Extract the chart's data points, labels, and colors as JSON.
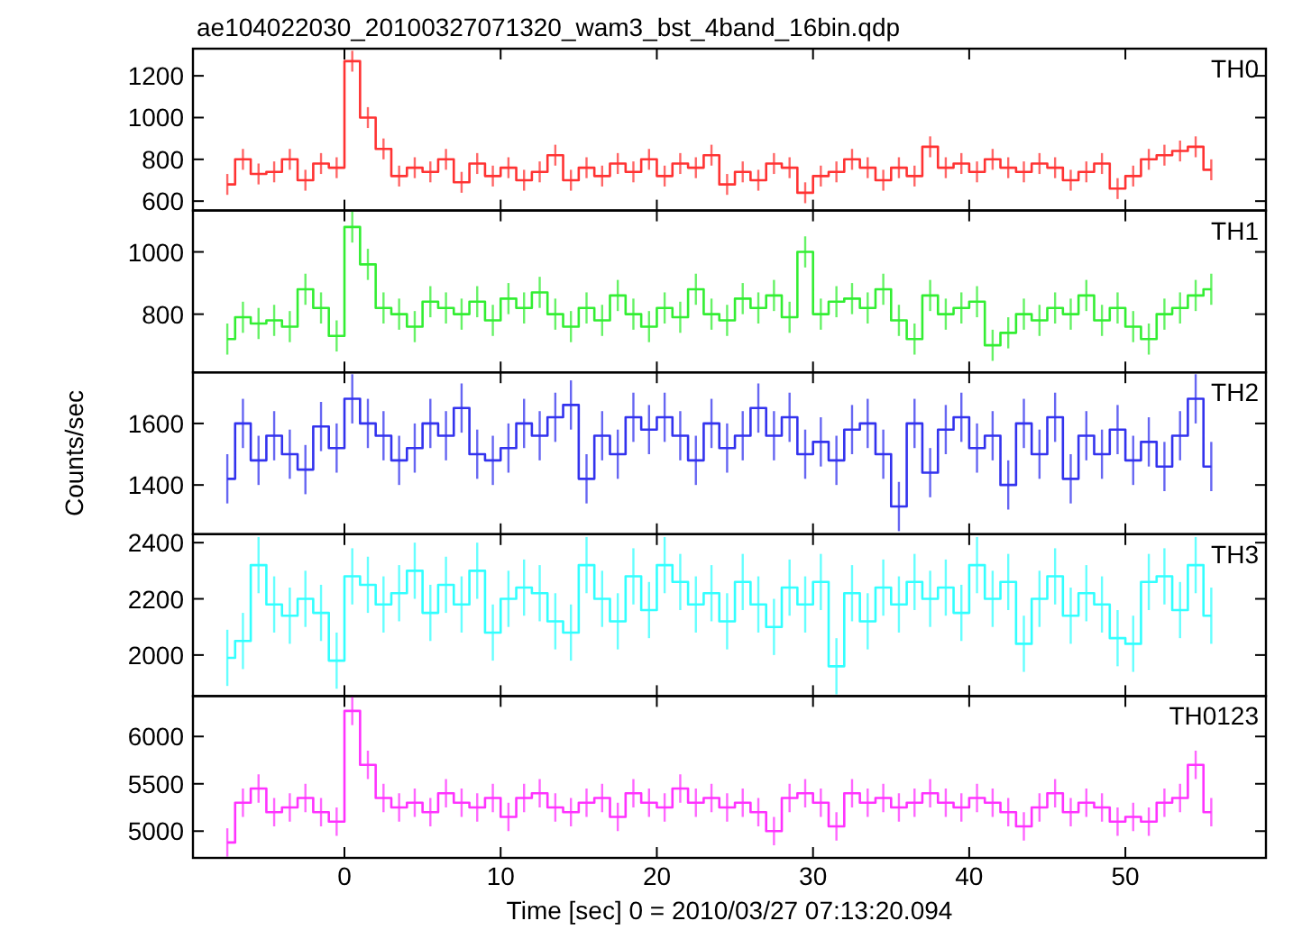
{
  "chart_data": [
    {
      "type": "step",
      "title": "ae104022030_20100327071320_wam3_bst_4band_16bin.qdp",
      "xlim": [
        -9.7,
        59
      ],
      "xticks": [
        0,
        10,
        20,
        30,
        40,
        50
      ],
      "ylim": [
        555,
        1330
      ],
      "yticks": [
        600,
        800,
        1000,
        1200
      ],
      "tick_labels": "y",
      "x": [
        -7.5,
        -6.5,
        -5.5,
        -4.5,
        -3.5,
        -2.5,
        -1.5,
        -0.5,
        0.5,
        1.5,
        2.5,
        3.5,
        4.5,
        5.5,
        6.5,
        7.5,
        8.5,
        9.5,
        10.5,
        11.5,
        12.5,
        13.5,
        14.5,
        15.5,
        16.5,
        17.5,
        18.5,
        19.5,
        20.5,
        21.5,
        22.5,
        23.5,
        24.5,
        25.5,
        26.5,
        27.5,
        28.5,
        29.5,
        30.5,
        31.5,
        32.5,
        33.5,
        34.5,
        35.5,
        36.5,
        37.5,
        38.5,
        39.5,
        40.5,
        41.5,
        42.5,
        43.5,
        44.5,
        45.5,
        46.5,
        47.5,
        48.5,
        49.5,
        50.5,
        51.5,
        52.5,
        53.5,
        54.5,
        55.5
      ],
      "series": [
        {
          "name": "TH0",
          "color": "#ff3333",
          "values": [
            680,
            800,
            730,
            740,
            800,
            700,
            780,
            760,
            1270,
            1000,
            850,
            720,
            760,
            740,
            800,
            690,
            780,
            720,
            760,
            700,
            740,
            820,
            700,
            760,
            720,
            780,
            740,
            800,
            720,
            780,
            760,
            820,
            680,
            740,
            700,
            780,
            760,
            640,
            720,
            740,
            800,
            760,
            700,
            760,
            720,
            860,
            760,
            780,
            740,
            800,
            760,
            740,
            780,
            760,
            700,
            740,
            780,
            660,
            720,
            800,
            820,
            840,
            860,
            750
          ],
          "errors": [
            50,
            50,
            50,
            50,
            50,
            50,
            50,
            50,
            50,
            50,
            50,
            50,
            50,
            50,
            50,
            50,
            50,
            50,
            50,
            50,
            50,
            50,
            50,
            50,
            50,
            50,
            50,
            50,
            50,
            50,
            50,
            50,
            50,
            50,
            50,
            50,
            50,
            50,
            50,
            50,
            50,
            50,
            50,
            50,
            50,
            50,
            50,
            50,
            50,
            50,
            50,
            50,
            50,
            50,
            50,
            50,
            50,
            50,
            50,
            50,
            50,
            50,
            50,
            50
          ]
        }
      ]
    },
    {
      "type": "step",
      "xlim": [
        -9.7,
        59
      ],
      "xticks": [
        0,
        10,
        20,
        30,
        40,
        50
      ],
      "ylim": [
        613,
        1133
      ],
      "yticks": [
        800,
        1000
      ],
      "tick_labels": "y",
      "x": [
        -7.5,
        -6.5,
        -5.5,
        -4.5,
        -3.5,
        -2.5,
        -1.5,
        -0.5,
        0.5,
        1.5,
        2.5,
        3.5,
        4.5,
        5.5,
        6.5,
        7.5,
        8.5,
        9.5,
        10.5,
        11.5,
        12.5,
        13.5,
        14.5,
        15.5,
        16.5,
        17.5,
        18.5,
        19.5,
        20.5,
        21.5,
        22.5,
        23.5,
        24.5,
        25.5,
        26.5,
        27.5,
        28.5,
        29.5,
        30.5,
        31.5,
        32.5,
        33.5,
        34.5,
        35.5,
        36.5,
        37.5,
        38.5,
        39.5,
        40.5,
        41.5,
        42.5,
        43.5,
        44.5,
        45.5,
        46.5,
        47.5,
        48.5,
        49.5,
        50.5,
        51.5,
        52.5,
        53.5,
        54.5,
        55.5
      ],
      "series": [
        {
          "name": "TH1",
          "color": "#33ee33",
          "values": [
            720,
            790,
            770,
            780,
            760,
            880,
            820,
            730,
            1080,
            960,
            820,
            800,
            760,
            840,
            820,
            800,
            840,
            780,
            850,
            820,
            870,
            800,
            760,
            820,
            780,
            860,
            800,
            760,
            820,
            790,
            880,
            800,
            780,
            850,
            820,
            860,
            790,
            1000,
            800,
            840,
            850,
            820,
            880,
            780,
            720,
            860,
            800,
            820,
            840,
            700,
            740,
            800,
            780,
            820,
            800,
            860,
            780,
            820,
            760,
            720,
            800,
            820,
            860,
            880
          ],
          "errors": [
            50,
            50,
            50,
            50,
            50,
            50,
            50,
            50,
            50,
            50,
            50,
            50,
            50,
            50,
            50,
            50,
            50,
            50,
            50,
            50,
            50,
            50,
            50,
            50,
            50,
            50,
            50,
            50,
            50,
            50,
            50,
            50,
            50,
            50,
            50,
            50,
            50,
            50,
            50,
            50,
            50,
            50,
            50,
            50,
            50,
            50,
            50,
            50,
            50,
            50,
            50,
            50,
            50,
            50,
            50,
            50,
            50,
            50,
            50,
            50,
            50,
            50,
            50,
            50
          ]
        }
      ]
    },
    {
      "type": "step",
      "ylabel": "Counts/sec",
      "xlim": [
        -9.7,
        59
      ],
      "xticks": [
        0,
        10,
        20,
        30,
        40,
        50
      ],
      "ylim": [
        1240,
        1766
      ],
      "yticks": [
        1400,
        1600
      ],
      "tick_labels": "y",
      "x": [
        -7.5,
        -6.5,
        -5.5,
        -4.5,
        -3.5,
        -2.5,
        -1.5,
        -0.5,
        0.5,
        1.5,
        2.5,
        3.5,
        4.5,
        5.5,
        6.5,
        7.5,
        8.5,
        9.5,
        10.5,
        11.5,
        12.5,
        13.5,
        14.5,
        15.5,
        16.5,
        17.5,
        18.5,
        19.5,
        20.5,
        21.5,
        22.5,
        23.5,
        24.5,
        25.5,
        26.5,
        27.5,
        28.5,
        29.5,
        30.5,
        31.5,
        32.5,
        33.5,
        34.5,
        35.5,
        36.5,
        37.5,
        38.5,
        39.5,
        40.5,
        41.5,
        42.5,
        43.5,
        44.5,
        45.5,
        46.5,
        47.5,
        48.5,
        49.5,
        50.5,
        51.5,
        52.5,
        53.5,
        54.5,
        55.5
      ],
      "series": [
        {
          "name": "TH2",
          "color": "#3333ee",
          "values": [
            1420,
            1600,
            1480,
            1560,
            1500,
            1450,
            1590,
            1520,
            1680,
            1600,
            1560,
            1480,
            1520,
            1600,
            1560,
            1650,
            1500,
            1480,
            1520,
            1600,
            1560,
            1620,
            1660,
            1420,
            1560,
            1500,
            1620,
            1580,
            1620,
            1560,
            1480,
            1600,
            1520,
            1560,
            1650,
            1560,
            1620,
            1500,
            1540,
            1480,
            1580,
            1600,
            1500,
            1330,
            1600,
            1440,
            1580,
            1620,
            1520,
            1560,
            1400,
            1600,
            1500,
            1620,
            1420,
            1560,
            1500,
            1580,
            1480,
            1540,
            1460,
            1560,
            1680,
            1460
          ],
          "errors": [
            80,
            80,
            80,
            80,
            80,
            80,
            80,
            80,
            80,
            80,
            80,
            80,
            80,
            80,
            80,
            80,
            80,
            80,
            80,
            80,
            80,
            80,
            80,
            80,
            80,
            80,
            80,
            80,
            80,
            80,
            80,
            80,
            80,
            80,
            80,
            80,
            80,
            80,
            80,
            80,
            80,
            80,
            80,
            80,
            80,
            80,
            80,
            80,
            80,
            80,
            80,
            80,
            80,
            80,
            80,
            80,
            80,
            80,
            80,
            80,
            80,
            80,
            80,
            80
          ]
        }
      ]
    },
    {
      "type": "step",
      "xlim": [
        -9.7,
        59
      ],
      "xticks": [
        0,
        10,
        20,
        30,
        40,
        50
      ],
      "ylim": [
        1854,
        2430
      ],
      "yticks": [
        2000,
        2200,
        2400
      ],
      "tick_labels": "y",
      "x": [
        -7.5,
        -6.5,
        -5.5,
        -4.5,
        -3.5,
        -2.5,
        -1.5,
        -0.5,
        0.5,
        1.5,
        2.5,
        3.5,
        4.5,
        5.5,
        6.5,
        7.5,
        8.5,
        9.5,
        10.5,
        11.5,
        12.5,
        13.5,
        14.5,
        15.5,
        16.5,
        17.5,
        18.5,
        19.5,
        20.5,
        21.5,
        22.5,
        23.5,
        24.5,
        25.5,
        26.5,
        27.5,
        28.5,
        29.5,
        30.5,
        31.5,
        32.5,
        33.5,
        34.5,
        35.5,
        36.5,
        37.5,
        38.5,
        39.5,
        40.5,
        41.5,
        42.5,
        43.5,
        44.5,
        45.5,
        46.5,
        47.5,
        48.5,
        49.5,
        50.5,
        51.5,
        52.5,
        53.5,
        54.5,
        55.5
      ],
      "series": [
        {
          "name": "TH3",
          "color": "#33ffff",
          "values": [
            1990,
            2050,
            2320,
            2180,
            2140,
            2200,
            2150,
            1980,
            2280,
            2250,
            2180,
            2220,
            2300,
            2150,
            2250,
            2180,
            2300,
            2080,
            2200,
            2240,
            2220,
            2120,
            2080,
            2320,
            2200,
            2120,
            2280,
            2160,
            2320,
            2260,
            2180,
            2220,
            2120,
            2260,
            2180,
            2100,
            2240,
            2180,
            2260,
            1960,
            2220,
            2120,
            2240,
            2180,
            2260,
            2200,
            2240,
            2150,
            2320,
            2200,
            2260,
            2040,
            2200,
            2280,
            2140,
            2220,
            2180,
            2060,
            2040,
            2260,
            2280,
            2160,
            2320,
            2140
          ],
          "errors": [
            100,
            100,
            100,
            100,
            100,
            100,
            100,
            100,
            100,
            100,
            100,
            100,
            100,
            100,
            100,
            100,
            100,
            100,
            100,
            100,
            100,
            100,
            100,
            100,
            100,
            100,
            100,
            100,
            100,
            100,
            100,
            100,
            100,
            100,
            100,
            100,
            100,
            100,
            100,
            100,
            100,
            100,
            100,
            100,
            100,
            100,
            100,
            100,
            100,
            100,
            100,
            100,
            100,
            100,
            100,
            100,
            100,
            100,
            100,
            100,
            100,
            100,
            100,
            100
          ]
        }
      ]
    },
    {
      "type": "step",
      "xlabel": "Time [sec] 0 = 2010/03/27 07:13:20.094",
      "xlim": [
        -9.7,
        59
      ],
      "xticks": [
        0,
        10,
        20,
        30,
        40,
        50
      ],
      "ylim": [
        4717,
        6427
      ],
      "yticks": [
        5000,
        5500,
        6000
      ],
      "x": [
        -7.5,
        -6.5,
        -5.5,
        -4.5,
        -3.5,
        -2.5,
        -1.5,
        -0.5,
        0.5,
        1.5,
        2.5,
        3.5,
        4.5,
        5.5,
        6.5,
        7.5,
        8.5,
        9.5,
        10.5,
        11.5,
        12.5,
        13.5,
        14.5,
        15.5,
        16.5,
        17.5,
        18.5,
        19.5,
        20.5,
        21.5,
        22.5,
        23.5,
        24.5,
        25.5,
        26.5,
        27.5,
        28.5,
        29.5,
        30.5,
        31.5,
        32.5,
        33.5,
        34.5,
        35.5,
        36.5,
        37.5,
        38.5,
        39.5,
        40.5,
        41.5,
        42.5,
        43.5,
        44.5,
        45.5,
        46.5,
        47.5,
        48.5,
        49.5,
        50.5,
        51.5,
        52.5,
        53.5,
        54.5,
        55.5
      ],
      "series": [
        {
          "name": "TH0123",
          "color": "#ff33ff",
          "values": [
            4880,
            5300,
            5450,
            5200,
            5250,
            5350,
            5200,
            5100,
            6270,
            5700,
            5350,
            5250,
            5300,
            5200,
            5400,
            5300,
            5250,
            5350,
            5150,
            5350,
            5400,
            5250,
            5200,
            5300,
            5350,
            5150,
            5400,
            5300,
            5250,
            5450,
            5300,
            5350,
            5250,
            5300,
            5200,
            5000,
            5350,
            5400,
            5300,
            5050,
            5400,
            5300,
            5350,
            5250,
            5300,
            5400,
            5300,
            5250,
            5350,
            5300,
            5200,
            5050,
            5250,
            5400,
            5200,
            5300,
            5250,
            5100,
            5150,
            5100,
            5300,
            5350,
            5700,
            5200
          ],
          "errors": [
            150,
            150,
            150,
            150,
            150,
            150,
            150,
            150,
            150,
            150,
            150,
            150,
            150,
            150,
            150,
            150,
            150,
            150,
            150,
            150,
            150,
            150,
            150,
            150,
            150,
            150,
            150,
            150,
            150,
            150,
            150,
            150,
            150,
            150,
            150,
            150,
            150,
            150,
            150,
            150,
            150,
            150,
            150,
            150,
            150,
            150,
            150,
            150,
            150,
            150,
            150,
            150,
            150,
            150,
            150,
            150,
            150,
            150,
            150,
            150,
            150,
            150,
            150,
            150
          ]
        }
      ]
    }
  ]
}
